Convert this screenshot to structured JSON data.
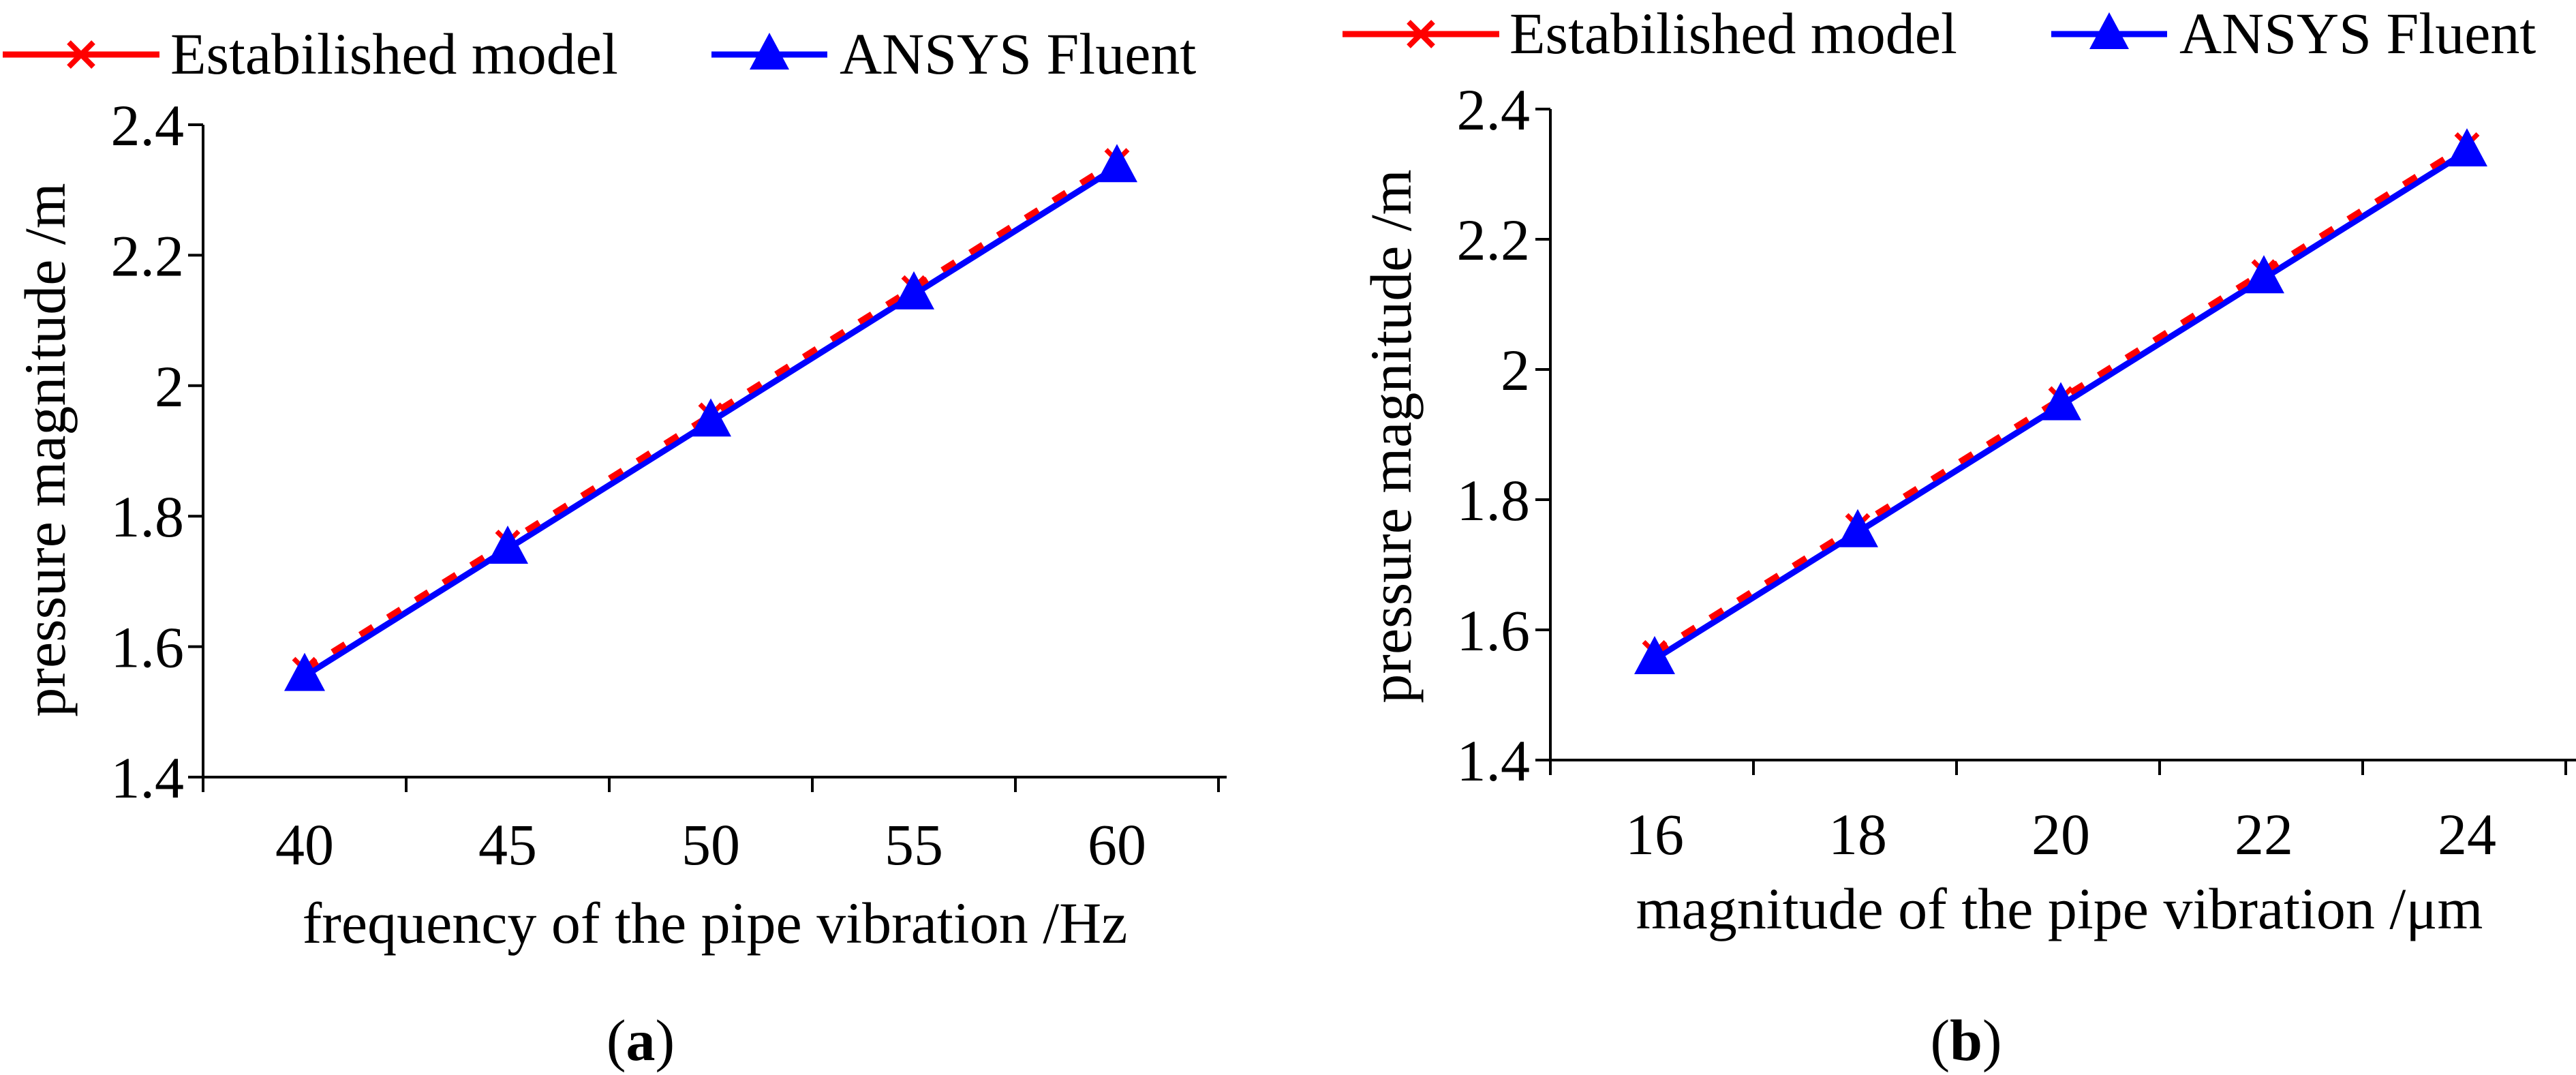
{
  "legend": {
    "series1_label": "Estabilished model",
    "series2_label": "ANSYS Fluent",
    "series1_color": "#ff0000",
    "series2_color": "#0000ff"
  },
  "chart_data": [
    {
      "type": "line",
      "id": "a",
      "caption_open": "(",
      "caption_letter": "a",
      "caption_close": ")",
      "xlabel": "frequency of the pipe vibration /Hz",
      "ylabel": "pressure magnitude /m",
      "x": [
        40,
        45,
        50,
        55,
        60
      ],
      "x_tick_labels": [
        "40",
        "45",
        "50",
        "55",
        "60"
      ],
      "ylim": [
        1.4,
        2.4
      ],
      "y_ticks": [
        1.4,
        1.6,
        1.8,
        2.0,
        2.2,
        2.4
      ],
      "y_tick_labels": [
        "1.4",
        "1.6",
        "1.8",
        "2",
        "2.2",
        "2.4"
      ],
      "series": [
        {
          "name": "Estabilished model",
          "marker": "x",
          "color": "#ff0000",
          "style": "dashed",
          "values": [
            1.565,
            1.76,
            1.955,
            2.15,
            2.345
          ]
        },
        {
          "name": "ANSYS Fluent",
          "marker": "triangle",
          "color": "#0000ff",
          "style": "solid",
          "values": [
            1.555,
            1.75,
            1.945,
            2.14,
            2.335
          ]
        }
      ]
    },
    {
      "type": "line",
      "id": "b",
      "caption_open": "(",
      "caption_letter": "b",
      "caption_close": ")",
      "xlabel": "magnitude of the pipe vibration /μm",
      "ylabel": "pressure magnitude /m",
      "x": [
        16,
        18,
        20,
        22,
        24
      ],
      "x_tick_labels": [
        "16",
        "18",
        "20",
        "22",
        "24"
      ],
      "ylim": [
        1.4,
        2.4
      ],
      "y_ticks": [
        1.4,
        1.6,
        1.8,
        2.0,
        2.2,
        2.4
      ],
      "y_tick_labels": [
        "1.4",
        "1.6",
        "1.8",
        "2",
        "2.2",
        "2.4"
      ],
      "series": [
        {
          "name": "Estabilished model",
          "marker": "x",
          "color": "#ff0000",
          "style": "dashed",
          "values": [
            1.565,
            1.76,
            1.955,
            2.15,
            2.345
          ]
        },
        {
          "name": "ANSYS Fluent",
          "marker": "triangle",
          "color": "#0000ff",
          "style": "solid",
          "values": [
            1.555,
            1.75,
            1.945,
            2.14,
            2.335
          ]
        }
      ]
    }
  ]
}
